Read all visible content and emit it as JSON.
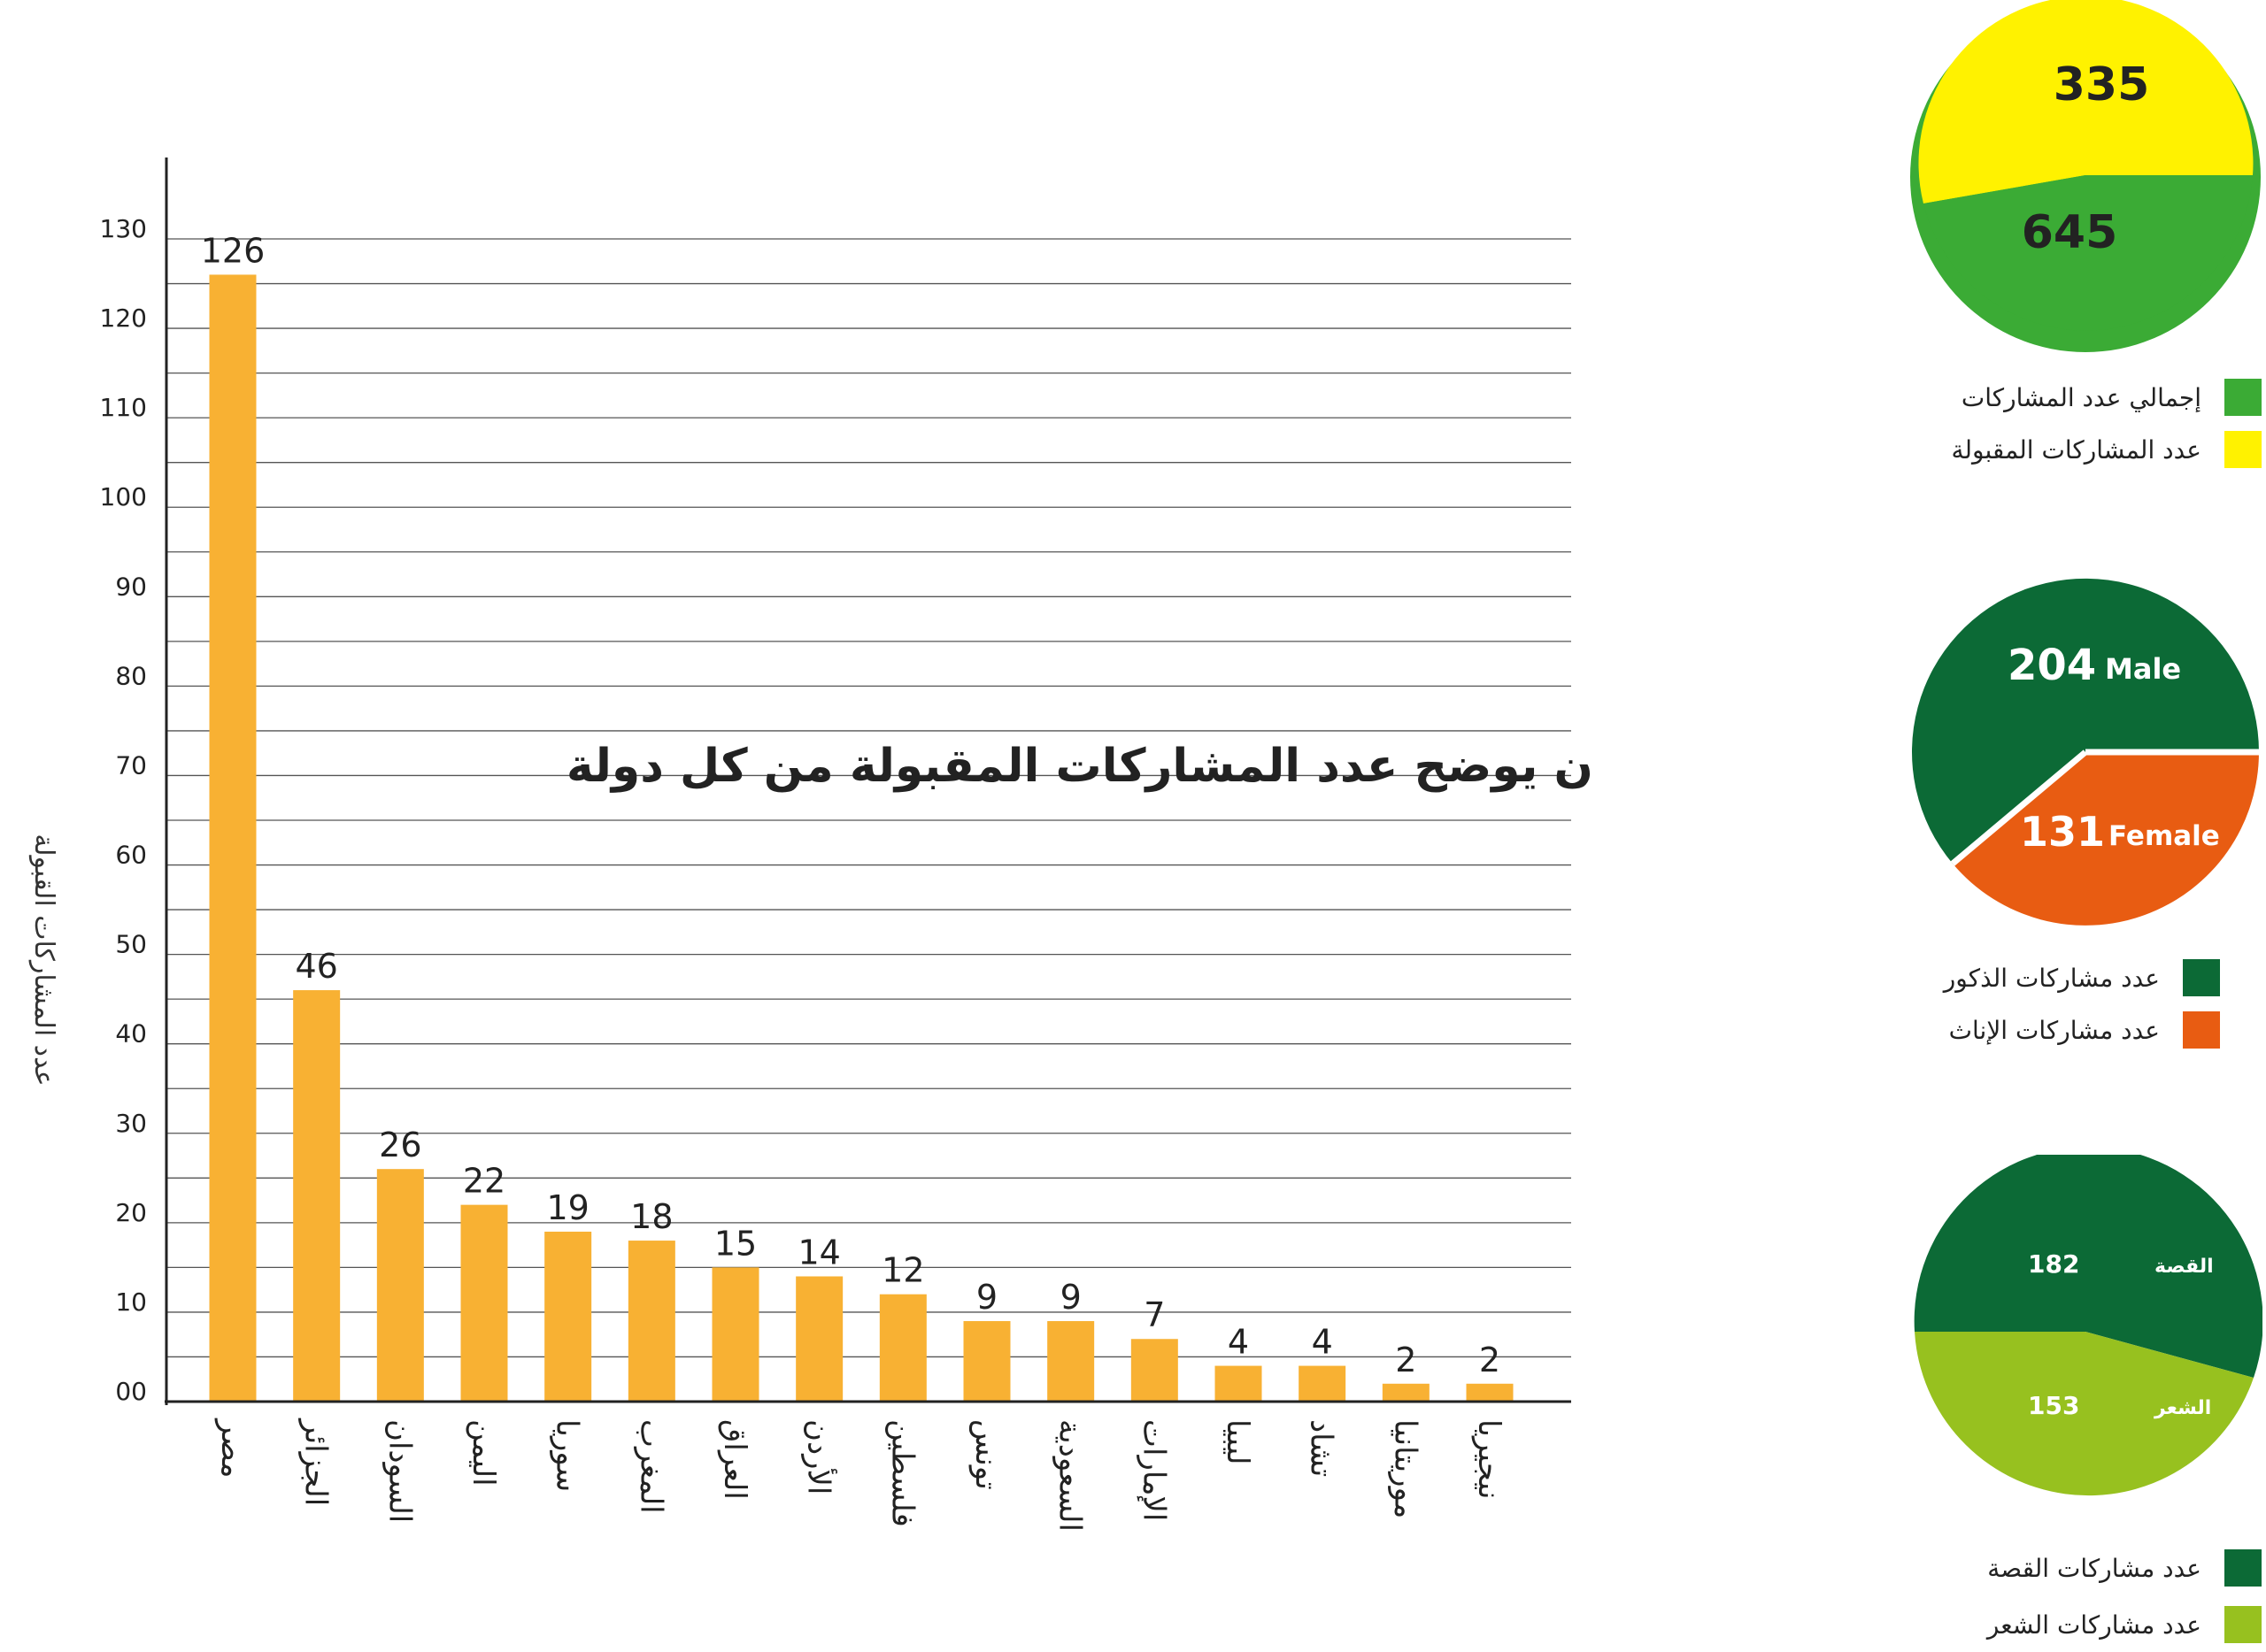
{
  "chart_data": [
    {
      "type": "bar",
      "title": "بيان يوضح عدد المشاركات المقبولة من كل دولة",
      "ylabel": "عدد المشاركات القبولة",
      "ylim": [
        0,
        130
      ],
      "yticks": [
        "00",
        "10",
        "20",
        "30",
        "40",
        "50",
        "60",
        "70",
        "80",
        "90",
        "100",
        "110",
        "120",
        "130"
      ],
      "grid": true,
      "bar_color": "#f8b133",
      "categories": [
        "مصر",
        "الجزائر",
        "السودان",
        "اليمن",
        "سوريا",
        "المغرب",
        "العراق",
        "الأردن",
        "فلسطين",
        "تونس",
        "السعودية",
        "الإمارات",
        "ليبيا",
        "تشاد",
        "موريتانيا",
        "نيجيريا"
      ],
      "values": [
        126,
        46,
        26,
        22,
        19,
        18,
        15,
        14,
        12,
        9,
        9,
        7,
        4,
        4,
        2,
        2
      ],
      "data_labels": [
        "126",
        "46",
        "26",
        "22",
        "19",
        "18",
        "15",
        "14",
        "12",
        "9",
        "9",
        "7",
        "4",
        "4",
        "2",
        "2"
      ]
    },
    {
      "type": "pie",
      "slices": [
        {
          "label": "335",
          "value": 335,
          "color": "#fff200"
        },
        {
          "label": "645",
          "value": 645,
          "color": "#3bab35"
        }
      ],
      "legend": [
        {
          "label": "إجمالي عدد المشاركات",
          "color": "#3bab35"
        },
        {
          "label": "عدد المشاركات المقبولة",
          "color": "#fff200"
        }
      ]
    },
    {
      "type": "pie",
      "slices": [
        {
          "value": 204,
          "number": "204",
          "label": "Male",
          "color": "#0c6a36"
        },
        {
          "value": 131,
          "number": "131",
          "label": "Female",
          "color": "#e85c12"
        }
      ],
      "legend": [
        {
          "label": "عدد مشاركات الذكور",
          "color": "#0c6a36"
        },
        {
          "label": "عدد مشاركات الإناث",
          "color": "#e85c12"
        }
      ]
    },
    {
      "type": "pie",
      "slices": [
        {
          "value": 182,
          "number": "182",
          "label": "القصة",
          "color": "#0c6a36"
        },
        {
          "value": 153,
          "number": "153",
          "label": "الشعر",
          "color": "#97c11f"
        }
      ],
      "legend": [
        {
          "label": "عدد مشاركات القصة",
          "color": "#0c6a36"
        },
        {
          "label": "عدد مشاركات الشعر",
          "color": "#97c11f"
        }
      ]
    }
  ]
}
